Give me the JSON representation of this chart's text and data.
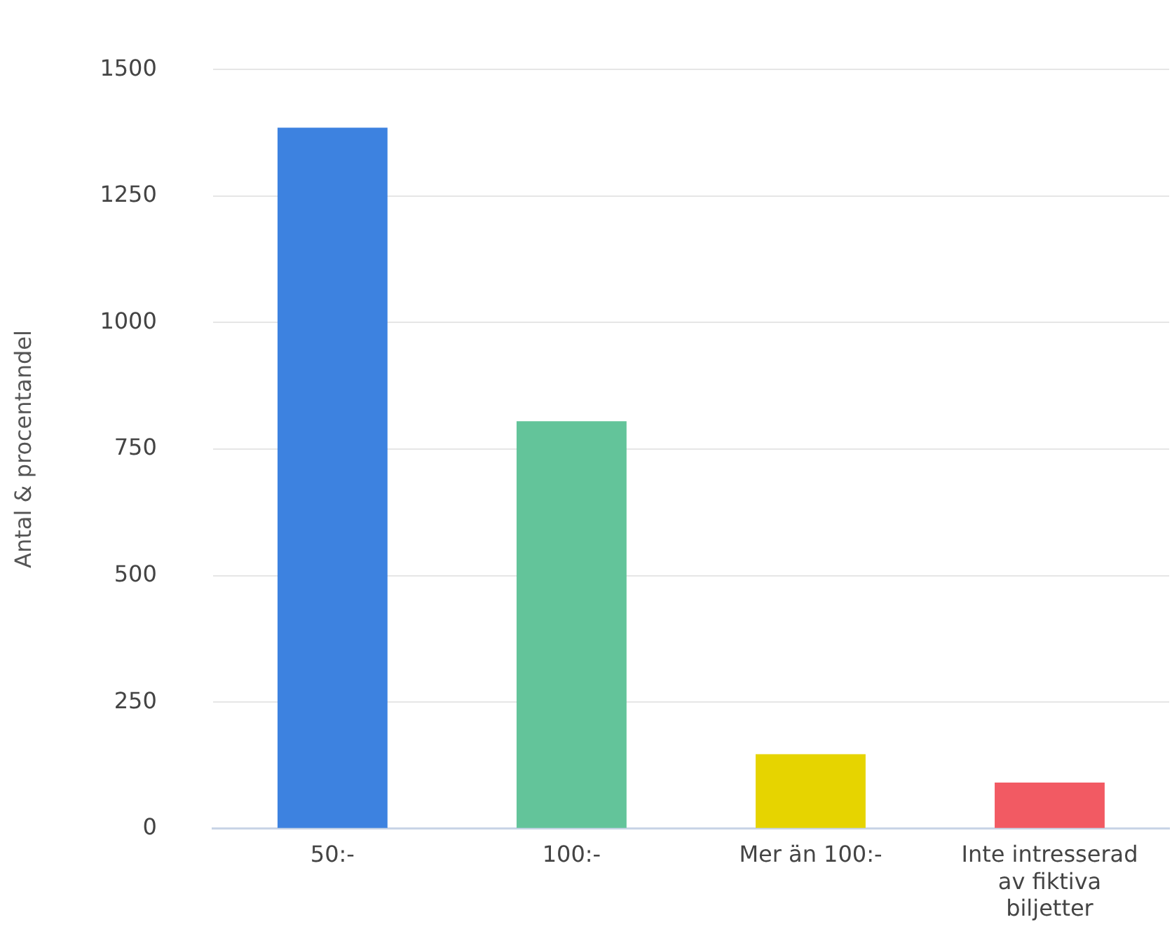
{
  "chart_data": {
    "type": "bar",
    "ylabel": "Antal & procentandel",
    "categories": [
      "50:-",
      "100:-",
      "Mer än 100:-",
      "Inte intresserad av fiktiva biljetter"
    ],
    "values": [
      1385,
      805,
      147,
      91
    ],
    "colors": [
      "#3d82e0",
      "#63c49a",
      "#e6d400",
      "#f25a63"
    ],
    "ylim": [
      0,
      1500
    ],
    "yticks": [
      0,
      250,
      500,
      750,
      1000,
      1250,
      1500
    ],
    "grid": "y",
    "legend": false
  }
}
